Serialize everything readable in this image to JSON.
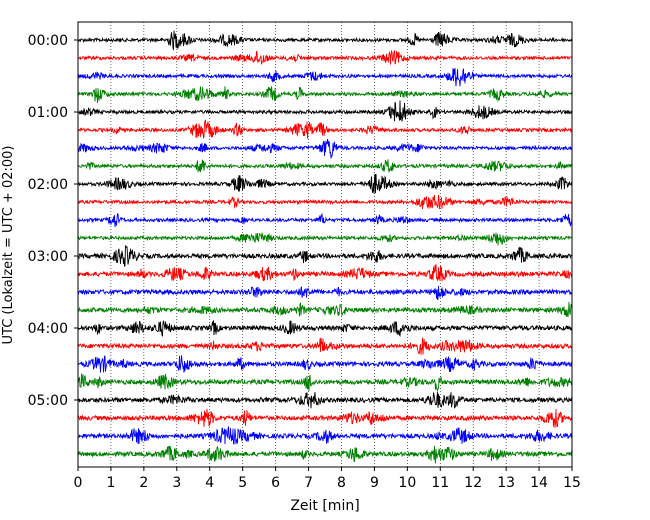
{
  "chart_data": {
    "type": "line",
    "title": "",
    "xlabel": "Zeit  [min]",
    "ylabel": "UTC (Lokalzeit = UTC + 02:00)",
    "xlim": [
      0,
      15
    ],
    "x_ticks": [
      "0",
      "1",
      "2",
      "3",
      "4",
      "5",
      "6",
      "7",
      "8",
      "9",
      "10",
      "11",
      "12",
      "13",
      "14",
      "15"
    ],
    "y_tick_labels": [
      "00:00",
      "01:00",
      "02:00",
      "03:00",
      "04:00",
      "05:00"
    ],
    "trace_interval_minutes": 15,
    "trace_count": 24,
    "first_trace": "00:00",
    "color_cycle": [
      "#000000",
      "#ff0000",
      "#0000ff",
      "#008000"
    ],
    "grid": "vertical dotted",
    "legend": "none"
  }
}
